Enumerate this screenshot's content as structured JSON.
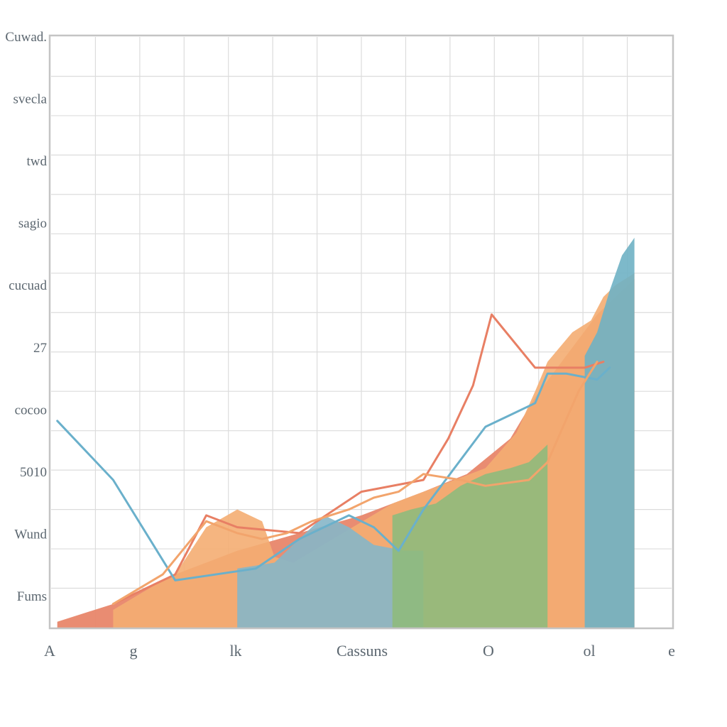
{
  "chart_data": {
    "type": "area",
    "title": "",
    "xlabel": "",
    "ylabel": "",
    "x_ticks": [
      "A",
      "g",
      "lk",
      "Cassuns",
      "O",
      "ol",
      "e"
    ],
    "y_ticks": [
      "Cuwad.",
      "svecla",
      "twd",
      "sagio",
      "cucuad",
      "27",
      "cocoo",
      "5010",
      "Wund",
      "Fums"
    ],
    "xlim": [
      0,
      100
    ],
    "ylim": [
      0,
      100
    ],
    "grid": true,
    "legend": "none",
    "series": [
      {
        "kind": "area",
        "color": "#e8866a",
        "x": [
          1,
          10,
          20,
          30,
          40,
          50,
          55,
          60,
          67,
          74,
          78,
          83,
          88,
          94
        ],
        "y": [
          1,
          4,
          9,
          13,
          16,
          19,
          21,
          23,
          26,
          32,
          39,
          46,
          53,
          59
        ]
      },
      {
        "kind": "area",
        "color": "#f4ad72",
        "x": [
          10,
          18,
          20,
          25,
          30,
          34,
          36,
          39,
          55,
          70,
          75,
          78,
          80,
          84,
          87,
          89,
          91,
          94
        ],
        "y": [
          3,
          8,
          9,
          17,
          20,
          18,
          12,
          11,
          21,
          27,
          33,
          40,
          45,
          50,
          52,
          56,
          58,
          60
        ]
      },
      {
        "kind": "area",
        "color": "#86b6c8",
        "x": [
          30,
          36,
          40,
          44,
          48,
          52,
          57,
          60
        ],
        "y": [
          10,
          11,
          15,
          19,
          17,
          14,
          13,
          13
        ]
      },
      {
        "kind": "area",
        "color": "#8fba7c",
        "x": [
          55,
          58,
          62,
          66,
          70,
          74,
          77,
          80
        ],
        "y": [
          19,
          20,
          21,
          24,
          26,
          27,
          28,
          31
        ]
      },
      {
        "kind": "area",
        "color": "#6fb1c4",
        "x": [
          86,
          88,
          90,
          92,
          94
        ],
        "y": [
          46,
          50,
          57,
          63,
          66
        ]
      },
      {
        "kind": "line",
        "color": "#e87f64",
        "x": [
          10,
          20,
          25,
          30,
          40,
          50,
          60,
          64,
          68,
          71,
          78,
          86,
          89
        ],
        "y": [
          4,
          9,
          19,
          17,
          16,
          23,
          25,
          32,
          41,
          53,
          44,
          44,
          45
        ]
      },
      {
        "kind": "line",
        "color": "#6ab0cb",
        "x": [
          1,
          10,
          20,
          33,
          40,
          48,
          52,
          56,
          60,
          70,
          74,
          78,
          80,
          83,
          88,
          90
        ],
        "y": [
          35,
          25,
          8,
          10,
          15,
          19,
          17,
          13,
          20,
          34,
          36,
          38,
          43,
          43,
          42,
          44
        ]
      },
      {
        "kind": "line",
        "color": "#f2a46c",
        "x": [
          10,
          18,
          25,
          30,
          34,
          38,
          42,
          48,
          52,
          56,
          60,
          66,
          70,
          77,
          80,
          85,
          88
        ],
        "y": [
          4,
          9,
          18,
          16,
          15,
          16,
          18,
          20,
          22,
          23,
          26,
          25,
          24,
          25,
          28,
          40,
          45
        ]
      }
    ]
  }
}
